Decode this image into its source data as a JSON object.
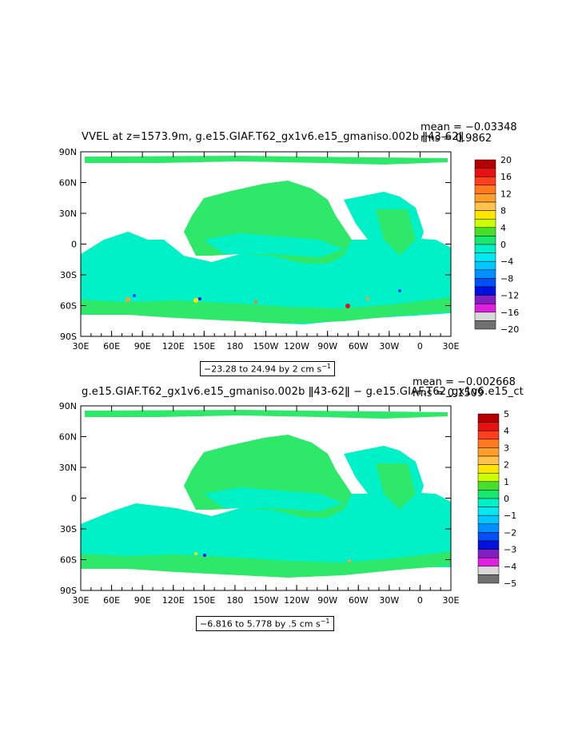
{
  "chart_data": [
    {
      "type": "heatmap",
      "title": "VVEL at z=1573.9m, g.e15.GIAF.T62_gx1v6.e15_gmaniso.002b ǁ43-62ǁ",
      "stats": {
        "mean": "mean = −0.03348",
        "rms": "rms = 0.9862"
      },
      "x_ticks": [
        "30E",
        "60E",
        "90E",
        "120E",
        "150E",
        "180",
        "150W",
        "120W",
        "90W",
        "60W",
        "30W",
        "0",
        "30E"
      ],
      "y_ticks": [
        "90N",
        "60N",
        "30N",
        "0",
        "30S",
        "60S",
        "90S"
      ],
      "colorbar_labels": [
        "20",
        "16",
        "12",
        "8",
        "4",
        "0",
        "−4",
        "−8",
        "−12",
        "−16",
        "−20"
      ],
      "colorbar_colors": [
        "#b40000",
        "#e81010",
        "#ff4020",
        "#ff7a1e",
        "#ff9f2a",
        "#ffc24a",
        "#ffe600",
        "#ccff00",
        "#44e02a",
        "#16e870",
        "#00f0c8",
        "#00e8f0",
        "#00c8ff",
        "#0090ff",
        "#0050f8",
        "#0010e0",
        "#8020c0",
        "#e020e0",
        "#d8d8d8",
        "#707070"
      ],
      "range_note": "−23.28 to 24.94 by 2 cm s",
      "range_note_sup": "−1",
      "mean": -0.03348,
      "rms": 0.9862,
      "min": -23.28,
      "max": 24.94,
      "interval": 2,
      "units": "cm s⁻¹"
    },
    {
      "type": "heatmap",
      "title": "g.e15.GIAF.T62_gx1v6.e15_gmaniso.002b ǁ43-62ǁ − g.e15.GIAF.T62_gx1v6.e15_ct",
      "stats": {
        "mean": "mean = −0.002668",
        "rms": "rms = 0.1509"
      },
      "x_ticks": [
        "30E",
        "60E",
        "90E",
        "120E",
        "150E",
        "180",
        "150W",
        "120W",
        "90W",
        "60W",
        "30W",
        "0",
        "30E"
      ],
      "y_ticks": [
        "90N",
        "60N",
        "30N",
        "0",
        "30S",
        "60S",
        "90S"
      ],
      "colorbar_labels": [
        "5",
        "4",
        "3",
        "2",
        "1",
        "0",
        "−1",
        "−2",
        "−3",
        "−4",
        "−5"
      ],
      "colorbar_colors": [
        "#b40000",
        "#e81010",
        "#ff4020",
        "#ff7a1e",
        "#ff9f2a",
        "#ffc24a",
        "#ffe600",
        "#ccff00",
        "#44e02a",
        "#16e870",
        "#00f0c8",
        "#00e8f0",
        "#00c8ff",
        "#0090ff",
        "#0050f8",
        "#0010e0",
        "#8020c0",
        "#e020e0",
        "#d8d8d8",
        "#707070"
      ],
      "range_note": "−6.816 to 5.778 by .5 cm s",
      "range_note_sup": "−1",
      "mean": -0.002668,
      "rms": 0.1509,
      "min": -6.816,
      "max": 5.778,
      "interval": 0.5,
      "units": "cm s⁻¹"
    }
  ]
}
